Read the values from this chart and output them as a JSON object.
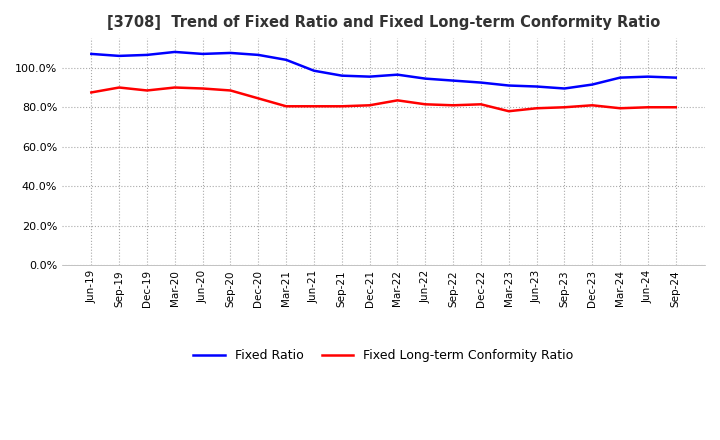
{
  "title": "[3708]  Trend of Fixed Ratio and Fixed Long-term Conformity Ratio",
  "x_labels": [
    "Jun-19",
    "Sep-19",
    "Dec-19",
    "Mar-20",
    "Jun-20",
    "Sep-20",
    "Dec-20",
    "Mar-21",
    "Jun-21",
    "Sep-21",
    "Dec-21",
    "Mar-22",
    "Jun-22",
    "Sep-22",
    "Dec-22",
    "Mar-23",
    "Jun-23",
    "Sep-23",
    "Dec-23",
    "Mar-24",
    "Jun-24",
    "Sep-24"
  ],
  "fixed_ratio": [
    107.0,
    106.0,
    106.5,
    108.0,
    107.0,
    107.5,
    106.5,
    104.0,
    98.5,
    96.0,
    95.5,
    96.5,
    94.5,
    93.5,
    92.5,
    91.0,
    90.5,
    89.5,
    91.5,
    95.0,
    95.5,
    95.0
  ],
  "fixed_lt_ratio": [
    87.5,
    90.0,
    88.5,
    90.0,
    89.5,
    88.5,
    84.5,
    80.5,
    80.5,
    80.5,
    81.0,
    83.5,
    81.5,
    81.0,
    81.5,
    78.0,
    79.5,
    80.0,
    81.0,
    79.5,
    80.0,
    80.0
  ],
  "blue_color": "#0000FF",
  "red_color": "#FF0000",
  "background_color": "#FFFFFF",
  "grid_color": "#AAAAAA",
  "ylim": [
    0,
    115
  ],
  "yticks": [
    0.0,
    20.0,
    40.0,
    60.0,
    80.0,
    100.0
  ],
  "legend_labels": [
    "Fixed Ratio",
    "Fixed Long-term Conformity Ratio"
  ]
}
